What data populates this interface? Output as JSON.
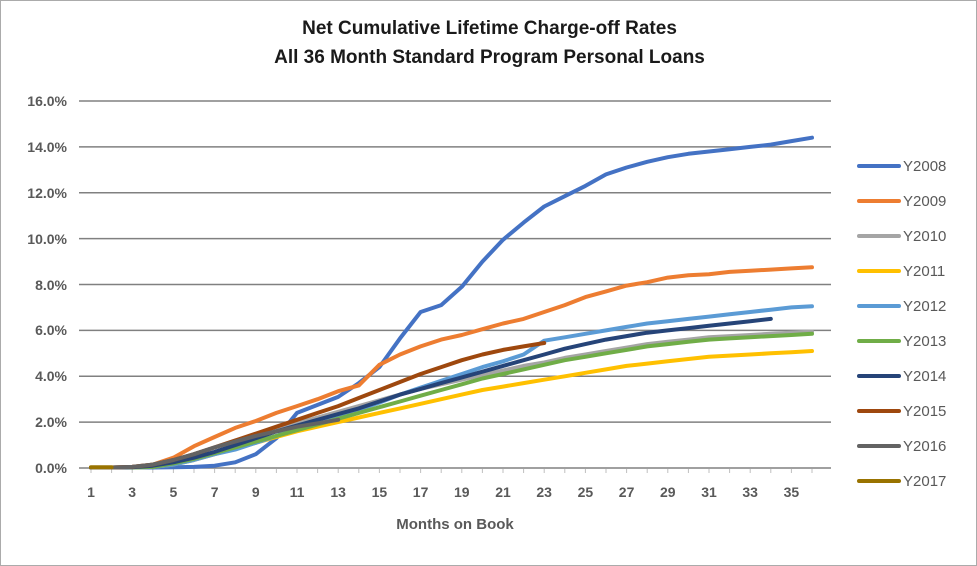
{
  "chart_data": {
    "type": "line",
    "title": "Net Cumulative Lifetime Charge-off Rates\nAll 36 Month Standard Program Personal Loans",
    "title_line1": "Net Cumulative Lifetime Charge-off Rates",
    "title_line2": "All 36 Month Standard Program Personal Loans",
    "xlabel": "Months on Book",
    "ylabel": "",
    "xlim": [
      1,
      36
    ],
    "ylim": [
      0,
      16
    ],
    "grid": "horizontal",
    "legend_position": "right",
    "gridline_color": "#808080",
    "axis_text_color": "#595959",
    "x_tick_labels": [
      1,
      3,
      5,
      7,
      9,
      11,
      13,
      15,
      17,
      19,
      21,
      23,
      25,
      27,
      29,
      31,
      33,
      35
    ],
    "y_tick_labels": [
      "0.0%",
      "2.0%",
      "4.0%",
      "6.0%",
      "8.0%",
      "10.0%",
      "12.0%",
      "14.0%",
      "16.0%"
    ],
    "y_unit": "percent",
    "series": [
      {
        "name": "Y2008",
        "color": "#4472C4",
        "start_month": 1,
        "values": [
          0.02,
          0.02,
          0.02,
          0.02,
          0.03,
          0.05,
          0.1,
          0.25,
          0.6,
          1.3,
          2.4,
          2.75,
          3.1,
          3.7,
          4.4,
          5.65,
          6.8,
          7.1,
          7.9,
          9.0,
          9.95,
          10.7,
          11.4,
          11.85,
          12.3,
          12.8,
          13.1,
          13.35,
          13.55,
          13.7,
          13.8,
          13.9,
          14.0,
          14.1,
          14.25,
          14.4
        ]
      },
      {
        "name": "Y2009",
        "color": "#ED7D31",
        "start_month": 1,
        "values": [
          0.02,
          0.02,
          0.05,
          0.15,
          0.45,
          0.95,
          1.35,
          1.75,
          2.05,
          2.4,
          2.7,
          3.0,
          3.35,
          3.6,
          4.5,
          4.95,
          5.3,
          5.6,
          5.8,
          6.05,
          6.3,
          6.5,
          6.8,
          7.1,
          7.45,
          7.7,
          7.95,
          8.1,
          8.3,
          8.4,
          8.45,
          8.55,
          8.6,
          8.65,
          8.7,
          8.75
        ]
      },
      {
        "name": "Y2010",
        "color": "#A5A5A5",
        "start_month": 1,
        "values": [
          0.02,
          0.02,
          0.03,
          0.1,
          0.3,
          0.6,
          0.9,
          1.2,
          1.45,
          1.7,
          1.95,
          2.2,
          2.45,
          2.7,
          2.95,
          3.2,
          3.45,
          3.65,
          3.85,
          4.05,
          4.25,
          4.45,
          4.6,
          4.8,
          4.95,
          5.1,
          5.25,
          5.4,
          5.5,
          5.6,
          5.7,
          5.75,
          5.8,
          5.85,
          5.9,
          5.95
        ]
      },
      {
        "name": "Y2011",
        "color": "#FFC000",
        "start_month": 1,
        "values": [
          0.02,
          0.02,
          0.02,
          0.05,
          0.15,
          0.35,
          0.6,
          0.85,
          1.1,
          1.35,
          1.6,
          1.8,
          2.0,
          2.2,
          2.4,
          2.6,
          2.8,
          3.0,
          3.2,
          3.4,
          3.55,
          3.7,
          3.85,
          4.0,
          4.15,
          4.3,
          4.45,
          4.55,
          4.65,
          4.75,
          4.85,
          4.9,
          4.95,
          5.0,
          5.05,
          5.1
        ]
      },
      {
        "name": "Y2012",
        "color": "#5B9BD5",
        "start_month": 1,
        "values": [
          0.02,
          0.02,
          0.02,
          0.05,
          0.15,
          0.35,
          0.6,
          0.8,
          1.1,
          1.4,
          1.7,
          2.0,
          2.25,
          2.55,
          2.85,
          3.2,
          3.5,
          3.8,
          4.1,
          4.4,
          4.65,
          4.95,
          5.55,
          5.7,
          5.85,
          6.0,
          6.15,
          6.3,
          6.4,
          6.5,
          6.6,
          6.7,
          6.8,
          6.9,
          7.0,
          7.05
        ]
      },
      {
        "name": "Y2013",
        "color": "#70AD47",
        "start_month": 1,
        "values": [
          0.02,
          0.02,
          0.02,
          0.05,
          0.2,
          0.4,
          0.65,
          0.9,
          1.15,
          1.4,
          1.65,
          1.9,
          2.15,
          2.4,
          2.65,
          2.9,
          3.15,
          3.4,
          3.65,
          3.9,
          4.1,
          4.3,
          4.5,
          4.7,
          4.85,
          5.0,
          5.15,
          5.3,
          5.4,
          5.5,
          5.6,
          5.65,
          5.7,
          5.75,
          5.8,
          5.85
        ]
      },
      {
        "name": "Y2014",
        "color": "#264478",
        "start_month": 1,
        "values": [
          0.02,
          0.02,
          0.03,
          0.1,
          0.25,
          0.45,
          0.7,
          1.0,
          1.3,
          1.6,
          1.85,
          2.1,
          2.35,
          2.6,
          2.9,
          3.2,
          3.45,
          3.7,
          3.95,
          4.2,
          4.45,
          4.7,
          4.95,
          5.2,
          5.4,
          5.6,
          5.75,
          5.9,
          6.0,
          6.1,
          6.2,
          6.3,
          6.4,
          6.5
        ]
      },
      {
        "name": "Y2015",
        "color": "#9E480E",
        "start_month": 1,
        "values": [
          0.02,
          0.02,
          0.05,
          0.15,
          0.35,
          0.6,
          0.9,
          1.2,
          1.5,
          1.8,
          2.1,
          2.4,
          2.7,
          3.05,
          3.4,
          3.75,
          4.1,
          4.4,
          4.7,
          4.95,
          5.15,
          5.3,
          5.45
        ]
      },
      {
        "name": "Y2016",
        "color": "#636363",
        "start_month": 1,
        "values": [
          0.02,
          0.02,
          0.05,
          0.15,
          0.35,
          0.6,
          0.9,
          1.15,
          1.4,
          1.6,
          1.8,
          1.95,
          2.1
        ]
      },
      {
        "name": "Y2017",
        "color": "#997300",
        "start_month": 1,
        "values": [
          0.03,
          0.03
        ]
      }
    ]
  }
}
